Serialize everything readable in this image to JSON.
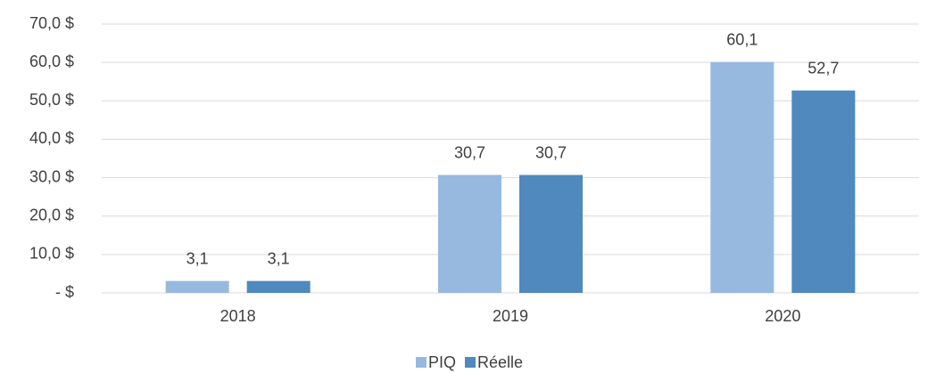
{
  "chart_data": {
    "type": "bar",
    "categories": [
      "2018",
      "2019",
      "2020"
    ],
    "series": [
      {
        "name": "PIQ",
        "color": "#97b9df",
        "values": [
          3.1,
          30.7,
          60.1
        ],
        "value_labels": [
          "3,1",
          "30,7",
          "60,1"
        ]
      },
      {
        "name": "Réelle",
        "color": "#4f89bd",
        "values": [
          3.1,
          30.7,
          52.7
        ],
        "value_labels": [
          "3,1",
          "30,7",
          "52,7"
        ]
      }
    ],
    "ylim": [
      0,
      70
    ],
    "yticks": [
      {
        "value": 0,
        "label": "-  $"
      },
      {
        "value": 10,
        "label": "10,0  $"
      },
      {
        "value": 20,
        "label": "20,0  $"
      },
      {
        "value": 30,
        "label": "30,0  $"
      },
      {
        "value": 40,
        "label": "40,0  $"
      },
      {
        "value": 50,
        "label": "50,0  $"
      },
      {
        "value": 60,
        "label": "60,0  $"
      },
      {
        "value": 70,
        "label": "70,0  $"
      }
    ],
    "grid": true,
    "legend": "bottom"
  }
}
